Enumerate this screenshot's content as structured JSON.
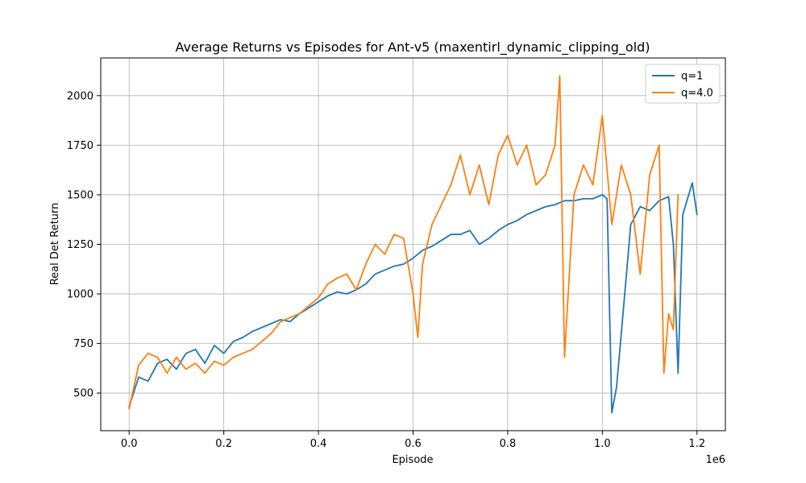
{
  "chart_data": {
    "type": "line",
    "title": "Average Returns vs Episodes for Ant-v5 (maxentirl_dynamic_clipping_old)",
    "xlabel": "Episode",
    "ylabel": "Real Det Return",
    "x_offset_label": "1e6",
    "xlim": [
      -0.06,
      1.26
    ],
    "ylim": [
      310,
      2190
    ],
    "x_ticks": [
      0.0,
      0.2,
      0.4,
      0.6,
      0.8,
      1.0,
      1.2
    ],
    "x_tick_labels": [
      "0.0",
      "0.2",
      "0.4",
      "0.6",
      "0.8",
      "1.0",
      "1.2"
    ],
    "y_ticks": [
      500,
      750,
      1000,
      1250,
      1500,
      1750,
      2000
    ],
    "y_tick_labels": [
      "500",
      "750",
      "1000",
      "1250",
      "1500",
      "1750",
      "2000"
    ],
    "grid": true,
    "legend_position": "top-right",
    "series": [
      {
        "name": "q=1",
        "color": "#1f77b4",
        "x": [
          0.0,
          0.02,
          0.04,
          0.06,
          0.08,
          0.1,
          0.12,
          0.14,
          0.16,
          0.18,
          0.2,
          0.22,
          0.24,
          0.26,
          0.28,
          0.3,
          0.32,
          0.34,
          0.36,
          0.38,
          0.4,
          0.42,
          0.44,
          0.46,
          0.48,
          0.5,
          0.52,
          0.54,
          0.56,
          0.58,
          0.6,
          0.62,
          0.64,
          0.66,
          0.68,
          0.7,
          0.72,
          0.74,
          0.76,
          0.78,
          0.8,
          0.82,
          0.84,
          0.86,
          0.88,
          0.9,
          0.92,
          0.94,
          0.96,
          0.98,
          1.0,
          1.01,
          1.02,
          1.03,
          1.04,
          1.06,
          1.08,
          1.1,
          1.12,
          1.14,
          1.15,
          1.16,
          1.17,
          1.18,
          1.19,
          1.2
        ],
        "values": [
          430,
          580,
          560,
          650,
          670,
          620,
          700,
          720,
          650,
          740,
          700,
          760,
          780,
          810,
          830,
          850,
          870,
          860,
          900,
          930,
          960,
          990,
          1010,
          1000,
          1020,
          1050,
          1100,
          1120,
          1140,
          1150,
          1180,
          1220,
          1240,
          1270,
          1300,
          1300,
          1320,
          1250,
          1280,
          1320,
          1350,
          1370,
          1400,
          1420,
          1440,
          1450,
          1470,
          1470,
          1480,
          1480,
          1500,
          1480,
          400,
          530,
          800,
          1350,
          1440,
          1420,
          1470,
          1490,
          1250,
          600,
          1400,
          1480,
          1560,
          1400
        ]
      },
      {
        "name": "q=4.0",
        "color": "#ff7f0e",
        "x": [
          0.0,
          0.02,
          0.04,
          0.06,
          0.08,
          0.1,
          0.12,
          0.14,
          0.16,
          0.18,
          0.2,
          0.22,
          0.24,
          0.26,
          0.28,
          0.3,
          0.32,
          0.34,
          0.36,
          0.38,
          0.4,
          0.42,
          0.44,
          0.46,
          0.48,
          0.5,
          0.52,
          0.54,
          0.56,
          0.58,
          0.6,
          0.61,
          0.62,
          0.64,
          0.66,
          0.68,
          0.7,
          0.72,
          0.74,
          0.76,
          0.78,
          0.8,
          0.82,
          0.84,
          0.86,
          0.88,
          0.9,
          0.91,
          0.92,
          0.94,
          0.96,
          0.98,
          1.0,
          1.02,
          1.04,
          1.06,
          1.08,
          1.1,
          1.12,
          1.13,
          1.14,
          1.15,
          1.16
        ],
        "values": [
          420,
          640,
          700,
          680,
          600,
          680,
          620,
          650,
          600,
          660,
          640,
          680,
          700,
          720,
          760,
          800,
          860,
          880,
          900,
          940,
          980,
          1050,
          1080,
          1100,
          1020,
          1150,
          1250,
          1200,
          1300,
          1280,
          1000,
          780,
          1150,
          1350,
          1450,
          1550,
          1700,
          1500,
          1650,
          1450,
          1700,
          1800,
          1650,
          1750,
          1550,
          1600,
          1750,
          2100,
          680,
          1500,
          1650,
          1550,
          1900,
          1350,
          1650,
          1500,
          1100,
          1600,
          1750,
          600,
          900,
          820,
          1500
        ]
      }
    ]
  }
}
